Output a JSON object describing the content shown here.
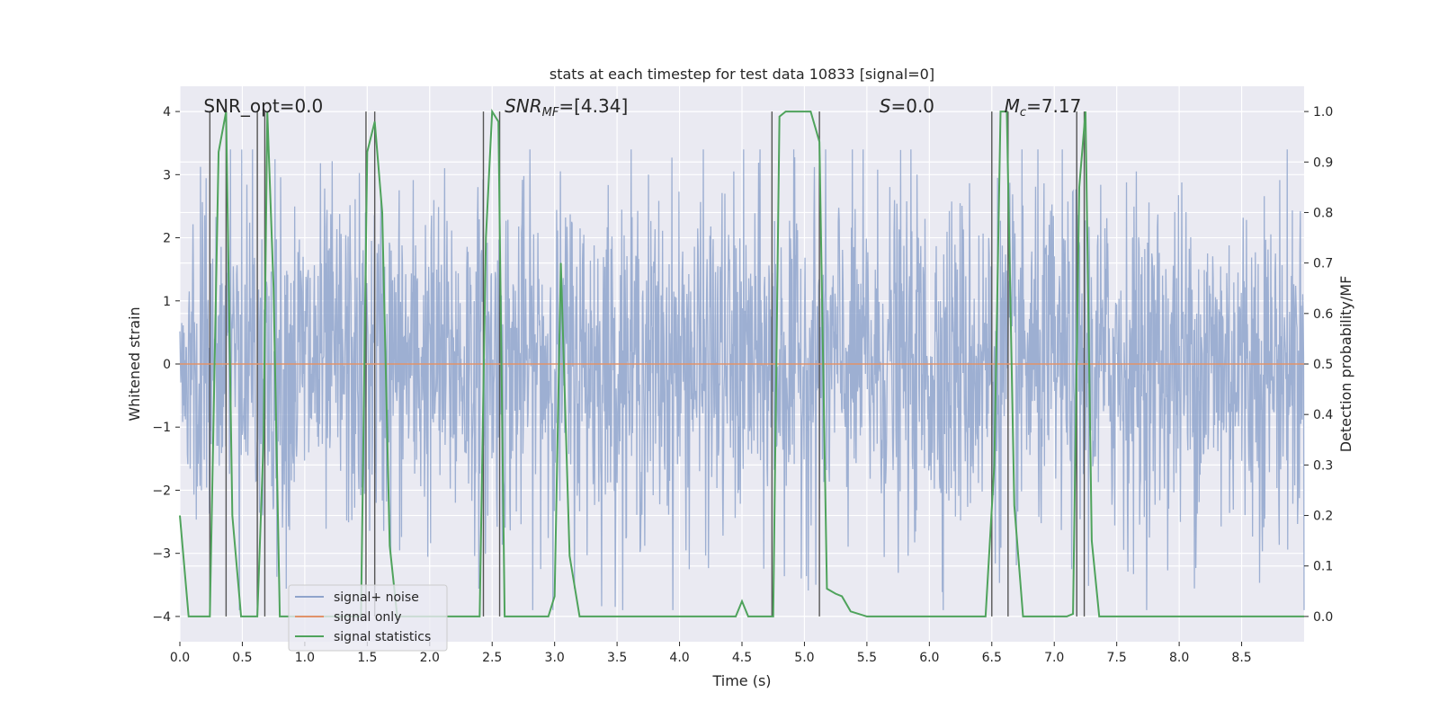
{
  "chart_data": {
    "type": "line",
    "title": "stats at each timestep for test data 10833 [signal=0]",
    "xlabel": "Time (s)",
    "ylabel": "Whitened strain",
    "y2label": "Detection probability/MF",
    "xlim": [
      0.0,
      9.0
    ],
    "ylim": [
      -4.4,
      4.4
    ],
    "y2lim": [
      -0.05,
      1.05
    ],
    "x_ticks": [
      0.0,
      0.5,
      1.0,
      1.5,
      2.0,
      2.5,
      3.0,
      3.5,
      4.0,
      4.5,
      5.0,
      5.5,
      6.0,
      6.5,
      7.0,
      7.5,
      8.0,
      8.5
    ],
    "x_tick_labels": [
      "0.0",
      "0.5",
      "1.0",
      "1.5",
      "2.0",
      "2.5",
      "3.0",
      "3.5",
      "4.0",
      "4.5",
      "5.0",
      "5.5",
      "6.0",
      "6.5",
      "7.0",
      "7.5",
      "8.0",
      "8.5"
    ],
    "y_ticks": [
      -4,
      -3,
      -2,
      -1,
      0,
      1,
      2,
      3,
      4
    ],
    "y_tick_labels": [
      "−4",
      "−3",
      "−2",
      "−1",
      "0",
      "1",
      "2",
      "3",
      "4"
    ],
    "y2_ticks": [
      0.0,
      0.1,
      0.2,
      0.3,
      0.4,
      0.5,
      0.6,
      0.7,
      0.8,
      0.9,
      1.0
    ],
    "y2_tick_labels": [
      "0.0",
      "0.1",
      "0.2",
      "0.3",
      "0.4",
      "0.5",
      "0.6",
      "0.7",
      "0.8",
      "0.9",
      "1.0"
    ],
    "grid": true,
    "legend_position": "bottom-left",
    "annotations": [
      {
        "text": "SNR_opt=0.0",
        "x": 0.19,
        "y": 4.0
      },
      {
        "text": "SNR_MF=[4.34]",
        "x": 2.6,
        "y": 4.0
      },
      {
        "text": "S=0.0",
        "x": 5.6,
        "y": 4.0
      },
      {
        "text": "M_c=7.17",
        "x": 6.6,
        "y": 4.0
      }
    ],
    "series": [
      {
        "name": "signal+ noise",
        "color": "#8fa4cc",
        "type": "noise-band",
        "typical_abs": 1.6,
        "max": 3.4,
        "min": -3.9
      },
      {
        "name": "signal only",
        "color": "#e1926a",
        "type": "constant",
        "value": 0.0
      },
      {
        "name": "signal statistics",
        "color": "#4fa35c",
        "axis": "right",
        "x": [
          0.0,
          0.07,
          0.24,
          0.31,
          0.37,
          0.42,
          0.49,
          0.56,
          0.62,
          0.67,
          0.7,
          0.75,
          0.8,
          0.86,
          0.9,
          1.3,
          1.45,
          1.5,
          1.56,
          1.62,
          1.68,
          1.74,
          1.8,
          2.4,
          2.45,
          2.5,
          2.55,
          2.6,
          2.95,
          3.0,
          3.05,
          3.12,
          3.2,
          4.45,
          4.5,
          4.55,
          4.75,
          4.8,
          4.85,
          5.05,
          5.12,
          5.18,
          5.25,
          5.3,
          5.37,
          5.5,
          6.45,
          6.52,
          6.57,
          6.62,
          6.68,
          6.75,
          7.1,
          7.15,
          7.2,
          7.25,
          7.3,
          7.36,
          9.0
        ],
        "y": [
          0.2,
          0.0,
          0.0,
          0.92,
          1.0,
          0.2,
          0.0,
          0.0,
          0.0,
          0.35,
          1.0,
          0.65,
          0.0,
          0.0,
          0.0,
          0.0,
          0.0,
          0.92,
          0.98,
          0.8,
          0.14,
          0.0,
          0.0,
          0.0,
          0.75,
          1.0,
          0.98,
          0.0,
          0.0,
          0.04,
          0.7,
          0.12,
          0.0,
          0.0,
          0.03,
          0.0,
          0.0,
          0.99,
          1.0,
          1.0,
          0.94,
          0.055,
          0.045,
          0.04,
          0.01,
          0.0,
          0.0,
          0.3,
          1.0,
          1.0,
          0.22,
          0.0,
          0.0,
          0.005,
          0.85,
          1.0,
          0.15,
          0.0,
          0.0
        ]
      }
    ],
    "vertical_markers": [
      0.24,
      0.37,
      0.62,
      0.68,
      1.49,
      1.56,
      2.43,
      2.56,
      4.74,
      5.12,
      6.5,
      6.63,
      7.18,
      7.24
    ]
  },
  "legend": {
    "items": [
      {
        "label": "signal+ noise",
        "color": "#8fa4cc"
      },
      {
        "label": "signal only",
        "color": "#e1926a"
      },
      {
        "label": "signal statistics",
        "color": "#4fa35c"
      }
    ]
  },
  "colors": {
    "plot_background": "#eaeaf2",
    "grid": "#ffffff",
    "marker_lines": "#555555"
  }
}
